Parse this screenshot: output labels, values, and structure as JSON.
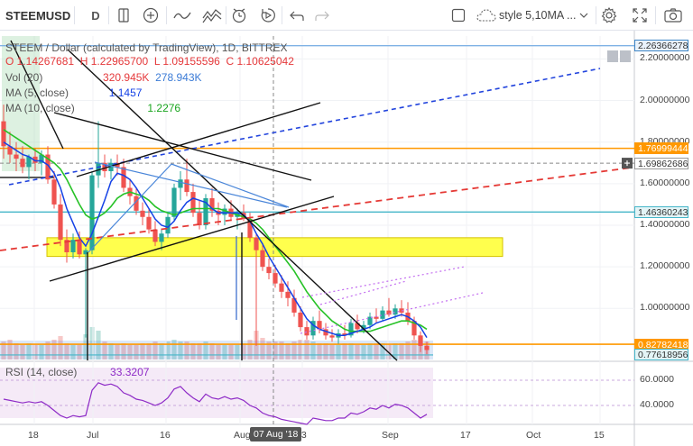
{
  "toolbar": {
    "symbol": "STEEMUSD",
    "interval": "D",
    "style_label": "style 5,10MA ...",
    "icons": [
      "compare-icon",
      "indicators-icon",
      "bar-style-icon",
      "line-tools-icon",
      "alert-icon",
      "replay-icon",
      "undo-icon",
      "redo-icon",
      "fullscreen-checkbox-icon",
      "cloud-icon",
      "chevron-down-icon",
      "settings-icon",
      "fullscreen-icon",
      "camera-icon"
    ]
  },
  "legend": {
    "title": "STEEM / Dollar (calculated by TradingView), 1D, BITTREX",
    "open": "O 1.14267681",
    "high": "H 1.22965700",
    "low": "L 1.09155596",
    "close": "C 1.10625042",
    "vol_label": "Vol (20)",
    "vol_value1": "320.945K",
    "vol_value2": "278.943K",
    "ma5_label": "MA (5, close)",
    "ma5_value": "1.1457",
    "ma10_label": "MA (10, close)",
    "ma10_value": "1.2276",
    "rsi_label": "RSI (14, close)",
    "rsi_value": "33.3207"
  },
  "colors": {
    "up": "#26a69a",
    "down": "#ef5350",
    "ma5": "#1542e6",
    "ma10": "#27c227",
    "yellow_zone": "#ffff4d",
    "orange_line": "#ff9800",
    "cyan_line": "#45b6c9",
    "blue_dash": "#2244dd",
    "red_dash": "#e53935",
    "rsi": "#8e2bc7",
    "rsi_band": "#f3e5f5"
  },
  "crosshair_date": "07 Aug '18",
  "price_tags": [
    {
      "label": "2.26366278",
      "bg": "#eaf2fb",
      "color": "#333",
      "border": "#3d85c6"
    },
    {
      "label": "1.76999444",
      "bg": "#ff9800",
      "color": "#fff",
      "border": "#ff9800"
    },
    {
      "label": "1.69862686",
      "bg": "#fff",
      "color": "#333",
      "border": "#999"
    },
    {
      "label": "1.46360243",
      "bg": "#e3f4f6",
      "color": "#333",
      "border": "#45b6c9"
    },
    {
      "label": "0.82782418",
      "bg": "#ff9800",
      "color": "#fff",
      "border": "#ff9800"
    },
    {
      "label": "0.77618956",
      "bg": "#e3f4f6",
      "color": "#333",
      "border": "#45b6c9"
    }
  ],
  "price_axis_labels": [
    "2.20000000",
    "2.00000000",
    "1.80000000",
    "1.60000000",
    "1.40000000",
    "1.20000000",
    "1.00000000"
  ],
  "rsi_axis_labels": [
    "60.0000",
    "40.0000"
  ],
  "chart_data": {
    "type": "candlestick",
    "title": "STEEM / Dollar (calculated by TradingView), 1D, BITTREX",
    "x_ticks": [
      "18",
      "Jul",
      "16",
      "Aug",
      "13",
      "Sep",
      "17",
      "Oct",
      "15"
    ],
    "y_range": [
      0.75,
      2.31
    ],
    "rsi_range": [
      25,
      75
    ],
    "candles": [
      {
        "o": 1.9,
        "h": 1.98,
        "l": 1.72,
        "c": 1.78
      },
      {
        "o": 1.78,
        "h": 1.85,
        "l": 1.7,
        "c": 1.74
      },
      {
        "o": 1.74,
        "h": 1.8,
        "l": 1.66,
        "c": 1.72
      },
      {
        "o": 1.72,
        "h": 1.78,
        "l": 1.65,
        "c": 1.68
      },
      {
        "o": 1.68,
        "h": 1.74,
        "l": 1.62,
        "c": 1.73
      },
      {
        "o": 1.73,
        "h": 1.77,
        "l": 1.66,
        "c": 1.7
      },
      {
        "o": 1.7,
        "h": 1.76,
        "l": 1.64,
        "c": 1.74
      },
      {
        "o": 1.74,
        "h": 1.78,
        "l": 1.6,
        "c": 1.62
      },
      {
        "o": 1.62,
        "h": 1.66,
        "l": 1.48,
        "c": 1.5
      },
      {
        "o": 1.5,
        "h": 1.55,
        "l": 1.3,
        "c": 1.33
      },
      {
        "o": 1.33,
        "h": 1.38,
        "l": 1.22,
        "c": 1.27
      },
      {
        "o": 1.27,
        "h": 1.36,
        "l": 1.24,
        "c": 1.33
      },
      {
        "o": 1.33,
        "h": 1.37,
        "l": 1.24,
        "c": 1.26
      },
      {
        "o": 1.26,
        "h": 1.29,
        "l": 0.86,
        "c": 1.28
      },
      {
        "o": 1.28,
        "h": 1.66,
        "l": 1.26,
        "c": 1.64
      },
      {
        "o": 1.64,
        "h": 1.9,
        "l": 1.58,
        "c": 1.7
      },
      {
        "o": 1.7,
        "h": 1.74,
        "l": 1.63,
        "c": 1.66
      },
      {
        "o": 1.66,
        "h": 1.72,
        "l": 1.62,
        "c": 1.7
      },
      {
        "o": 1.7,
        "h": 1.74,
        "l": 1.64,
        "c": 1.68
      },
      {
        "o": 1.68,
        "h": 1.72,
        "l": 1.56,
        "c": 1.58
      },
      {
        "o": 1.58,
        "h": 1.62,
        "l": 1.5,
        "c": 1.54
      },
      {
        "o": 1.54,
        "h": 1.58,
        "l": 1.45,
        "c": 1.47
      },
      {
        "o": 1.47,
        "h": 1.51,
        "l": 1.4,
        "c": 1.44
      },
      {
        "o": 1.44,
        "h": 1.48,
        "l": 1.36,
        "c": 1.38
      },
      {
        "o": 1.38,
        "h": 1.42,
        "l": 1.3,
        "c": 1.32
      },
      {
        "o": 1.32,
        "h": 1.38,
        "l": 1.28,
        "c": 1.36
      },
      {
        "o": 1.36,
        "h": 1.46,
        "l": 1.34,
        "c": 1.44
      },
      {
        "o": 1.44,
        "h": 1.6,
        "l": 1.42,
        "c": 1.58
      },
      {
        "o": 1.58,
        "h": 1.66,
        "l": 1.52,
        "c": 1.62
      },
      {
        "o": 1.62,
        "h": 1.72,
        "l": 1.54,
        "c": 1.56
      },
      {
        "o": 1.56,
        "h": 1.6,
        "l": 1.44,
        "c": 1.46
      },
      {
        "o": 1.46,
        "h": 1.52,
        "l": 1.38,
        "c": 1.4
      },
      {
        "o": 1.4,
        "h": 1.55,
        "l": 1.38,
        "c": 1.53
      },
      {
        "o": 1.53,
        "h": 1.58,
        "l": 1.44,
        "c": 1.47
      },
      {
        "o": 1.47,
        "h": 1.51,
        "l": 1.4,
        "c": 1.45
      },
      {
        "o": 1.45,
        "h": 1.5,
        "l": 1.4,
        "c": 1.48
      },
      {
        "o": 1.48,
        "h": 1.52,
        "l": 1.42,
        "c": 1.44
      },
      {
        "o": 1.44,
        "h": 1.48,
        "l": 1.38,
        "c": 1.46
      },
      {
        "o": 1.46,
        "h": 1.5,
        "l": 1.42,
        "c": 1.43
      },
      {
        "o": 1.43,
        "h": 1.46,
        "l": 1.32,
        "c": 1.34
      },
      {
        "o": 1.34,
        "h": 1.36,
        "l": 0.82,
        "c": 1.28
      },
      {
        "o": 1.28,
        "h": 1.31,
        "l": 1.18,
        "c": 1.2
      },
      {
        "o": 1.2,
        "h": 1.24,
        "l": 1.14,
        "c": 1.17
      },
      {
        "o": 1.17,
        "h": 1.21,
        "l": 1.1,
        "c": 1.12
      },
      {
        "o": 1.12,
        "h": 1.16,
        "l": 1.05,
        "c": 1.08
      },
      {
        "o": 1.08,
        "h": 1.13,
        "l": 1.01,
        "c": 1.05
      },
      {
        "o": 1.05,
        "h": 1.09,
        "l": 0.96,
        "c": 0.98
      },
      {
        "o": 0.98,
        "h": 1.01,
        "l": 0.89,
        "c": 0.91
      },
      {
        "o": 0.91,
        "h": 0.94,
        "l": 0.85,
        "c": 0.87
      },
      {
        "o": 0.87,
        "h": 0.96,
        "l": 0.85,
        "c": 0.94
      },
      {
        "o": 0.94,
        "h": 0.99,
        "l": 0.88,
        "c": 0.9
      },
      {
        "o": 0.9,
        "h": 0.93,
        "l": 0.85,
        "c": 0.87
      },
      {
        "o": 0.87,
        "h": 0.9,
        "l": 0.84,
        "c": 0.86
      },
      {
        "o": 0.86,
        "h": 0.9,
        "l": 0.83,
        "c": 0.88
      },
      {
        "o": 0.88,
        "h": 0.92,
        "l": 0.85,
        "c": 0.87
      },
      {
        "o": 0.87,
        "h": 0.95,
        "l": 0.86,
        "c": 0.93
      },
      {
        "o": 0.93,
        "h": 0.97,
        "l": 0.88,
        "c": 0.9
      },
      {
        "o": 0.9,
        "h": 0.94,
        "l": 0.88,
        "c": 0.92
      },
      {
        "o": 0.92,
        "h": 0.98,
        "l": 0.9,
        "c": 0.96
      },
      {
        "o": 0.96,
        "h": 1.0,
        "l": 0.93,
        "c": 0.95
      },
      {
        "o": 0.95,
        "h": 1.01,
        "l": 0.94,
        "c": 0.99
      },
      {
        "o": 0.99,
        "h": 1.05,
        "l": 0.96,
        "c": 0.97
      },
      {
        "o": 0.97,
        "h": 1.02,
        "l": 0.95,
        "c": 1.0
      },
      {
        "o": 1.0,
        "h": 1.04,
        "l": 0.96,
        "c": 0.98
      },
      {
        "o": 0.98,
        "h": 1.03,
        "l": 0.92,
        "c": 0.94
      },
      {
        "o": 0.94,
        "h": 0.96,
        "l": 0.85,
        "c": 0.87
      },
      {
        "o": 0.87,
        "h": 0.89,
        "l": 0.79,
        "c": 0.82
      },
      {
        "o": 0.82,
        "h": 0.84,
        "l": 0.78,
        "c": 0.8
      }
    ],
    "ma5": [
      1.8,
      1.78,
      1.76,
      1.74,
      1.73,
      1.71,
      1.71,
      1.69,
      1.65,
      1.58,
      1.48,
      1.41,
      1.34,
      1.3,
      1.36,
      1.44,
      1.52,
      1.61,
      1.65,
      1.64,
      1.62,
      1.58,
      1.53,
      1.48,
      1.43,
      1.4,
      1.39,
      1.42,
      1.47,
      1.51,
      1.53,
      1.52,
      1.51,
      1.48,
      1.46,
      1.46,
      1.46,
      1.46,
      1.45,
      1.42,
      1.36,
      1.31,
      1.25,
      1.2,
      1.15,
      1.1,
      1.05,
      1.0,
      0.95,
      0.92,
      0.9,
      0.89,
      0.88,
      0.87,
      0.87,
      0.88,
      0.89,
      0.9,
      0.91,
      0.93,
      0.94,
      0.95,
      0.96,
      0.97,
      0.96,
      0.94,
      0.91,
      0.86
    ],
    "ma10": [
      1.86,
      1.84,
      1.82,
      1.8,
      1.78,
      1.76,
      1.74,
      1.72,
      1.7,
      1.67,
      1.62,
      1.56,
      1.5,
      1.45,
      1.43,
      1.44,
      1.46,
      1.49,
      1.53,
      1.55,
      1.56,
      1.55,
      1.54,
      1.52,
      1.49,
      1.47,
      1.46,
      1.45,
      1.46,
      1.47,
      1.48,
      1.48,
      1.48,
      1.48,
      1.48,
      1.47,
      1.46,
      1.45,
      1.44,
      1.43,
      1.41,
      1.38,
      1.34,
      1.3,
      1.26,
      1.22,
      1.18,
      1.13,
      1.08,
      1.04,
      1.0,
      0.97,
      0.94,
      0.92,
      0.9,
      0.89,
      0.89,
      0.89,
      0.89,
      0.9,
      0.91,
      0.92,
      0.93,
      0.94,
      0.94,
      0.93,
      0.92,
      0.9
    ],
    "volume": [
      0.5,
      0.55,
      0.45,
      0.4,
      0.45,
      0.4,
      0.4,
      0.5,
      0.55,
      0.65,
      0.45,
      0.4,
      0.4,
      0.7,
      0.9,
      0.8,
      0.5,
      0.45,
      0.4,
      0.45,
      0.4,
      0.4,
      0.45,
      0.45,
      0.5,
      0.45,
      0.5,
      0.55,
      0.5,
      0.5,
      0.45,
      0.45,
      0.5,
      0.45,
      0.4,
      0.4,
      0.4,
      0.4,
      0.45,
      0.55,
      0.8,
      0.6,
      0.5,
      0.5,
      0.5,
      0.45,
      0.5,
      0.55,
      0.55,
      0.5,
      0.45,
      0.45,
      0.4,
      0.4,
      0.45,
      0.45,
      0.4,
      0.4,
      0.45,
      0.45,
      0.45,
      0.4,
      0.45,
      0.45,
      0.5,
      0.55,
      0.6,
      0.5
    ],
    "rsi": [
      45,
      44,
      43,
      42,
      43,
      42,
      43,
      40,
      36,
      32,
      30,
      32,
      31,
      32,
      52,
      58,
      56,
      57,
      55,
      50,
      48,
      45,
      44,
      42,
      40,
      42,
      46,
      53,
      55,
      50,
      46,
      43,
      49,
      46,
      45,
      47,
      45,
      46,
      44,
      40,
      38,
      34,
      32,
      31,
      29,
      28,
      27,
      26,
      25,
      30,
      29,
      28,
      28,
      30,
      30,
      34,
      33,
      35,
      38,
      37,
      40,
      38,
      41,
      40,
      38,
      34,
      30,
      33
    ]
  }
}
